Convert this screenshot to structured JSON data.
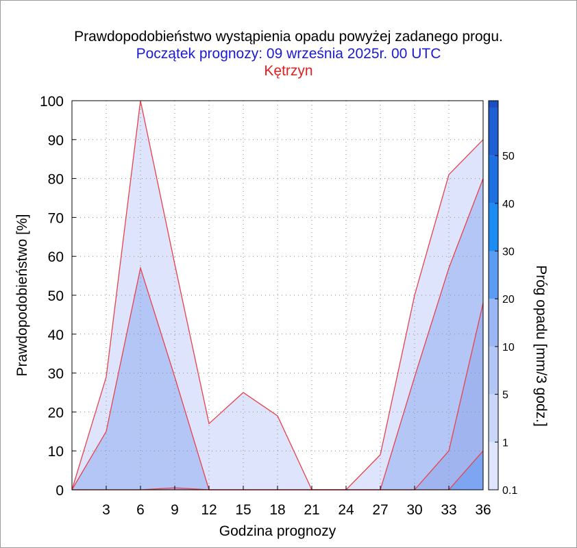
{
  "chart_data": {
    "type": "area",
    "title": "Prawdopodobieństwo wystąpienia opadu powyżej zadanego progu.",
    "subtitle": "Początek prognozy: 09 września 2025r. 00 UTC",
    "location": "Kętrzyn",
    "xlabel": "Godzina prognozy",
    "ylabel": "Prawdopodobieństwo [%]",
    "xlim": [
      0,
      36
    ],
    "ylim": [
      0,
      100
    ],
    "x": [
      0,
      3,
      6,
      9,
      12,
      15,
      18,
      21,
      24,
      27,
      30,
      33,
      36
    ],
    "xticks": [
      3,
      6,
      9,
      12,
      15,
      18,
      21,
      24,
      27,
      30,
      33,
      36
    ],
    "yticks": [
      0,
      10,
      20,
      30,
      40,
      50,
      60,
      70,
      80,
      90,
      100
    ],
    "grid": true,
    "series": [
      {
        "name": "0.1",
        "color": "#dde4fb",
        "values": [
          0,
          29,
          100,
          58,
          17,
          25,
          19,
          0,
          0,
          9,
          50,
          81,
          90
        ]
      },
      {
        "name": "1",
        "color": "#b4c6f5",
        "values": [
          0,
          15,
          57,
          29,
          0,
          0,
          0,
          0,
          0,
          0,
          29,
          57,
          80
        ]
      },
      {
        "name": "5",
        "color": "#a0b4f0",
        "values": [
          0,
          0,
          0,
          0.5,
          0,
          0,
          0,
          0,
          0,
          0,
          0,
          10,
          48
        ]
      },
      {
        "name": "10",
        "color": "#7da5f2",
        "values": [
          0,
          0,
          0,
          0,
          0,
          0,
          0,
          0,
          0,
          0,
          0,
          0,
          10
        ]
      }
    ],
    "line_color": "#e8404a",
    "colorbar": {
      "label": "Próg opadu [mm/3 godz.]",
      "tick_labels": [
        "0.1",
        "1",
        "5",
        "10",
        "20",
        "30",
        "40",
        "50"
      ],
      "colors": [
        "#dde4fb",
        "#cad6f8",
        "#b4c6f5",
        "#9ab6f4",
        "#5b9cf2",
        "#1d8cf2",
        "#1e6fe0",
        "#1f5fd4",
        "#1a4fc0"
      ]
    }
  }
}
